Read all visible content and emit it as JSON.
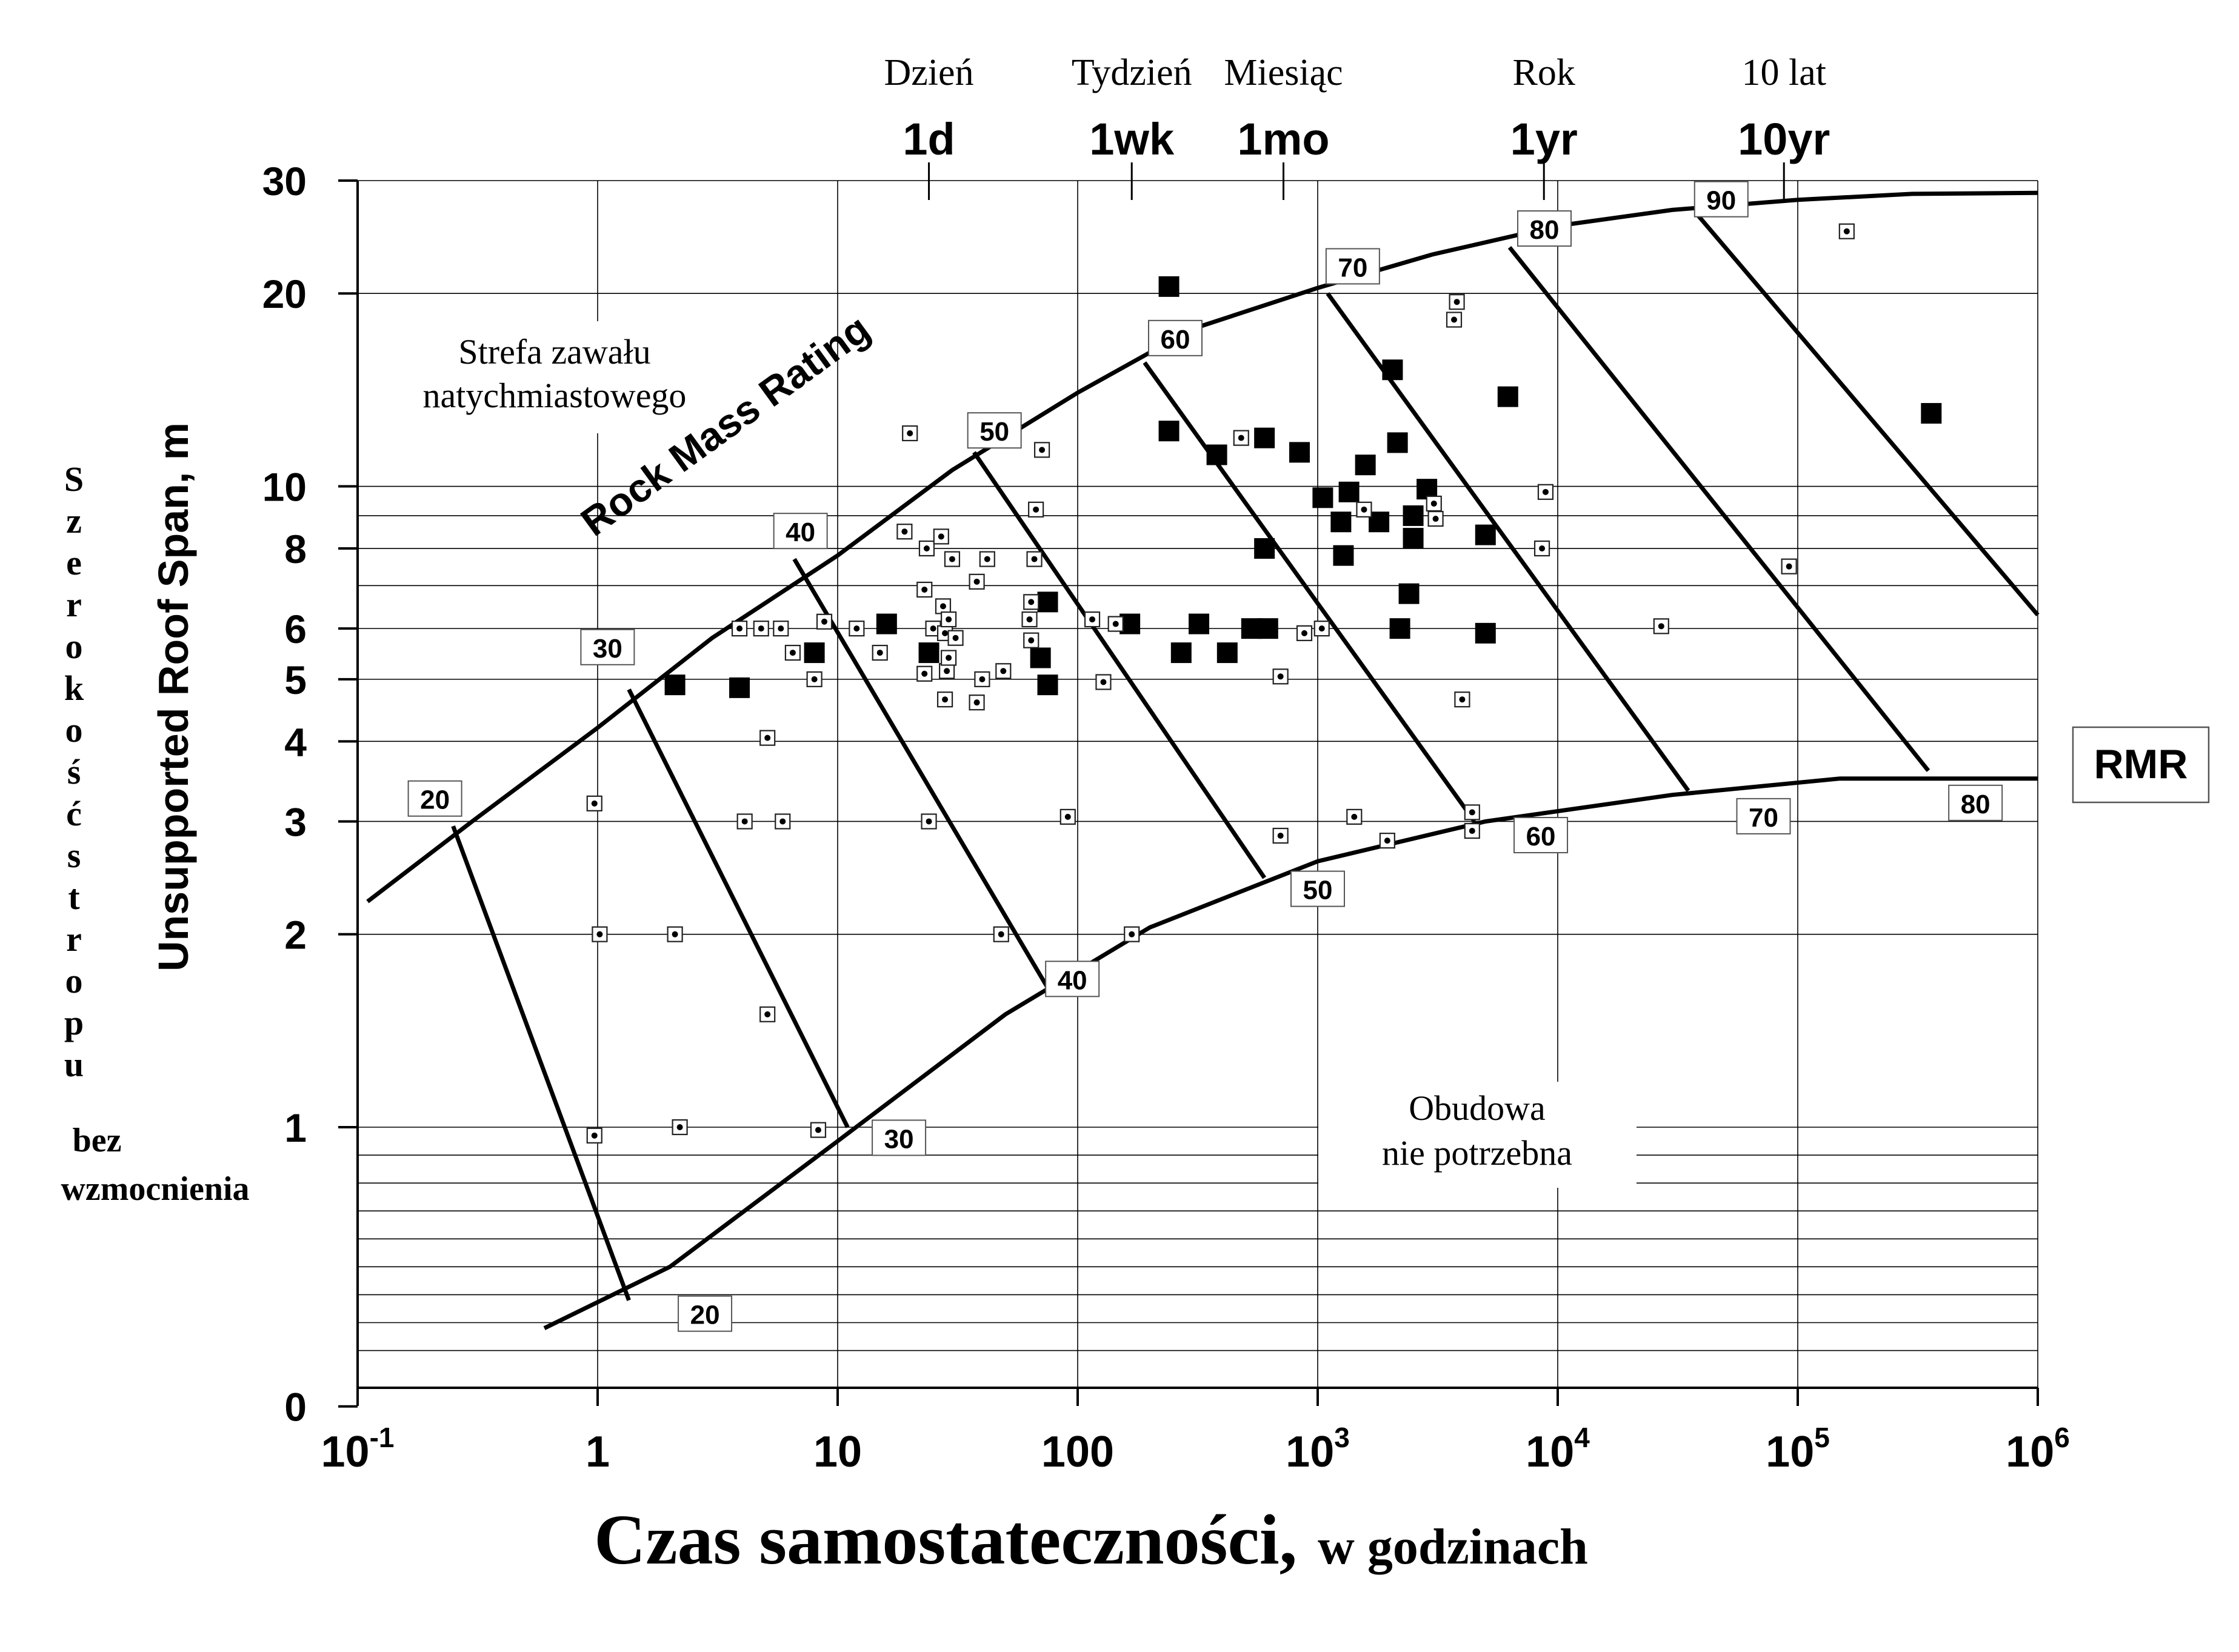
{
  "chart_data": {
    "type": "scatter",
    "xlabel_main": "Czas samostateczności,",
    "xlabel_suffix": "w  godzinach",
    "ylabel_en": "Unsupported Roof Span, m",
    "ylabel_pl": "Szerokość stropu",
    "ylabel_pl_tail": [
      "bez",
      "wzmocnienia"
    ],
    "x_scale": "log",
    "xlim": [
      0.1,
      1000000
    ],
    "x_ticks": [
      {
        "value": 0.1,
        "base": "10",
        "exp": "-1"
      },
      {
        "value": 1,
        "base": "1",
        "exp": ""
      },
      {
        "value": 10,
        "base": "10",
        "exp": ""
      },
      {
        "value": 100,
        "base": "100",
        "exp": ""
      },
      {
        "value": 1000,
        "base": "10",
        "exp": "3"
      },
      {
        "value": 10000,
        "base": "10",
        "exp": "4"
      },
      {
        "value": 100000,
        "base": "10",
        "exp": "5"
      },
      {
        "value": 1000000,
        "base": "10",
        "exp": "6"
      }
    ],
    "y_scale": "log-with-zero",
    "y_ticks": [
      "30",
      "20",
      "10",
      "8",
      "6",
      "5",
      "4",
      "3",
      "2",
      "1",
      "0"
    ],
    "grid": true,
    "time_markers": [
      {
        "value": 24,
        "pl": "Dzień",
        "en": "1d"
      },
      {
        "value": 168,
        "pl": "Tydzień",
        "en": "1wk"
      },
      {
        "value": 720,
        "pl": "Miesiąc",
        "en": "1mo"
      },
      {
        "value": 8760,
        "pl": "Rok",
        "en": "1yr"
      },
      {
        "value": 87600,
        "pl": "10 lat",
        "en": "10yr"
      }
    ],
    "upper_curve_label": "Rock Mass Rating",
    "rmr_legend": "RMR",
    "upper_curve": [
      [
        0.11,
        2.25
      ],
      [
        0.3,
        3.0
      ],
      [
        1,
        4.2
      ],
      [
        3,
        5.8
      ],
      [
        10,
        7.8
      ],
      [
        30,
        10.6
      ],
      [
        100,
        14.0
      ],
      [
        300,
        17.6
      ],
      [
        1000,
        20.4
      ],
      [
        3000,
        23.0
      ],
      [
        10000,
        25.5
      ],
      [
        30000,
        27.0
      ],
      [
        100000,
        28.0
      ],
      [
        300000,
        28.6
      ],
      [
        1000000,
        28.7
      ]
    ],
    "lower_curve": [
      [
        0.6,
        0.28
      ],
      [
        2,
        0.5
      ],
      [
        10,
        0.95
      ],
      [
        50,
        1.5
      ],
      [
        200,
        2.05
      ],
      [
        1000,
        2.6
      ],
      [
        5000,
        3.0
      ],
      [
        30000,
        3.3
      ],
      [
        150000,
        3.5
      ],
      [
        1000000,
        3.5
      ]
    ],
    "rmr_lines": [
      {
        "value": "20",
        "top": [
          0.25,
          2.95
        ],
        "bottom": [
          1.35,
          0.38
        ]
      },
      {
        "value": "30",
        "top": [
          1.35,
          4.82
        ],
        "bottom": [
          11,
          1.0
        ]
      },
      {
        "value": "40",
        "top": [
          6.6,
          7.7
        ],
        "bottom": [
          75,
          1.65
        ]
      },
      {
        "value": "50",
        "top": [
          37,
          11.3
        ],
        "bottom": [
          600,
          2.45
        ]
      },
      {
        "value": "60",
        "top": [
          190,
          15.6
        ],
        "bottom": [
          4500,
          3.0
        ]
      },
      {
        "value": "70",
        "top": [
          1100,
          20.0
        ],
        "bottom": [
          35000,
          3.35
        ]
      },
      {
        "value": "80",
        "top": [
          6300,
          23.6
        ],
        "bottom": [
          350000,
          3.6
        ]
      },
      {
        "value": "90",
        "top": [
          38000,
          26.6
        ],
        "bottom": [
          1000000,
          6.3
        ]
      },
      {
        "value": "",
        "top": [
          null,
          null
        ],
        "bottom": [
          null,
          null
        ]
      }
    ],
    "upper_labels": [
      {
        "text": "20",
        "x": 0.21,
        "y": 3.25
      },
      {
        "text": "30",
        "x": 1.1,
        "y": 5.6
      },
      {
        "text": "40",
        "x": 7,
        "y": 8.5
      },
      {
        "text": "50",
        "x": 45,
        "y": 12.2
      },
      {
        "text": "60",
        "x": 255,
        "y": 17.0
      },
      {
        "text": "70",
        "x": 1400,
        "y": 22.0
      },
      {
        "text": "80",
        "x": 8800,
        "y": 25.2
      },
      {
        "text": "90",
        "x": 48000,
        "y": 28.0
      }
    ],
    "lower_labels": [
      {
        "text": "20",
        "x": 2.8,
        "y": 0.33
      },
      {
        "text": "30",
        "x": 18,
        "y": 0.96
      },
      {
        "text": "40",
        "x": 95,
        "y": 1.7
      },
      {
        "text": "50",
        "x": 1000,
        "y": 2.35
      },
      {
        "text": "60",
        "x": 8500,
        "y": 2.85
      },
      {
        "text": "70",
        "x": 72000,
        "y": 3.05
      },
      {
        "text": "80",
        "x": 550000,
        "y": 3.2
      }
    ],
    "annotations": {
      "collapse_zone": [
        "Strefa zawału",
        "natychmiastowego"
      ],
      "no_support": [
        "Obudowa",
        "nie potrzebna"
      ]
    },
    "series": [
      {
        "marker": "filled-square",
        "points": [
          [
            2.1,
            4.9
          ],
          [
            3.9,
            4.85
          ],
          [
            8,
            5.5
          ],
          [
            16,
            6.1
          ],
          [
            24,
            5.5
          ],
          [
            70,
            5.4
          ],
          [
            75,
            6.6
          ],
          [
            75,
            4.9
          ],
          [
            165,
            6.1
          ],
          [
            240,
            20.5
          ],
          [
            240,
            12.2
          ],
          [
            270,
            5.5
          ],
          [
            320,
            6.1
          ],
          [
            380,
            11.2
          ],
          [
            420,
            5.5
          ],
          [
            530,
            6.0
          ],
          [
            600,
            11.9
          ],
          [
            600,
            8.0
          ],
          [
            620,
            6.0
          ],
          [
            840,
            11.3
          ],
          [
            1050,
            9.6
          ],
          [
            1250,
            8.8
          ],
          [
            1280,
            7.8
          ],
          [
            1350,
            9.8
          ],
          [
            1580,
            10.8
          ],
          [
            1800,
            8.8
          ],
          [
            2050,
            15.2
          ],
          [
            2150,
            11.7
          ],
          [
            2200,
            6.0
          ],
          [
            2400,
            6.8
          ],
          [
            2500,
            9.0
          ],
          [
            2500,
            8.3
          ],
          [
            2850,
            9.9
          ],
          [
            5000,
            8.4
          ],
          [
            5000,
            5.9
          ],
          [
            6200,
            13.8
          ],
          [
            360000,
            13.0
          ]
        ]
      },
      {
        "marker": "open-square-dot",
        "points": [
          [
            0.97,
            3.2
          ],
          [
            0.97,
            0.97
          ],
          [
            1.02,
            2.0
          ],
          [
            2.1,
            2.0
          ],
          [
            2.2,
            1.0
          ],
          [
            3.9,
            6.0
          ],
          [
            4.1,
            3.0
          ],
          [
            4.8,
            6.0
          ],
          [
            5.1,
            4.05
          ],
          [
            5.1,
            1.5
          ],
          [
            5.8,
            6.0
          ],
          [
            5.9,
            3.0
          ],
          [
            6.5,
            5.5
          ],
          [
            8,
            5.0
          ],
          [
            8.3,
            0.99
          ],
          [
            8.8,
            6.15
          ],
          [
            12,
            6.0
          ],
          [
            15,
            5.5
          ],
          [
            19,
            8.5
          ],
          [
            20,
            12.1
          ],
          [
            23,
            6.9
          ],
          [
            23,
            5.1
          ],
          [
            23.5,
            8.0
          ],
          [
            24,
            3.0
          ],
          [
            25,
            6.0
          ],
          [
            27,
            8.35
          ],
          [
            27.5,
            6.5
          ],
          [
            28,
            5.9
          ],
          [
            28,
            4.65
          ],
          [
            28.5,
            5.15
          ],
          [
            29,
            6.2
          ],
          [
            29,
            5.4
          ],
          [
            30,
            7.7
          ],
          [
            31,
            5.8
          ],
          [
            38,
            7.1
          ],
          [
            38,
            4.6
          ],
          [
            40,
            5.0
          ],
          [
            42,
            7.7
          ],
          [
            48,
            2.0
          ],
          [
            49,
            5.15
          ],
          [
            63,
            6.2
          ],
          [
            64,
            6.6
          ],
          [
            64,
            5.75
          ],
          [
            66,
            7.7
          ],
          [
            67,
            9.2
          ],
          [
            71,
            11.4
          ],
          [
            91,
            3.05
          ],
          [
            115,
            6.2
          ],
          [
            128,
            4.95
          ],
          [
            144,
            6.1
          ],
          [
            168,
            2.0
          ],
          [
            480,
            11.9
          ],
          [
            700,
            5.05
          ],
          [
            700,
            2.85
          ],
          [
            880,
            5.9
          ],
          [
            1040,
            6.0
          ],
          [
            1420,
            3.05
          ],
          [
            1560,
            9.2
          ],
          [
            1950,
            2.8
          ],
          [
            3700,
            18.2
          ],
          [
            3800,
            19.4
          ],
          [
            3050,
            9.4
          ],
          [
            3100,
            8.9
          ],
          [
            4000,
            4.65
          ],
          [
            4400,
            3.1
          ],
          [
            4400,
            2.9
          ],
          [
            8600,
            8.0
          ],
          [
            8900,
            9.8
          ],
          [
            27000,
            6.05
          ],
          [
            92000,
            7.5
          ],
          [
            160000,
            25.0
          ]
        ]
      }
    ]
  }
}
